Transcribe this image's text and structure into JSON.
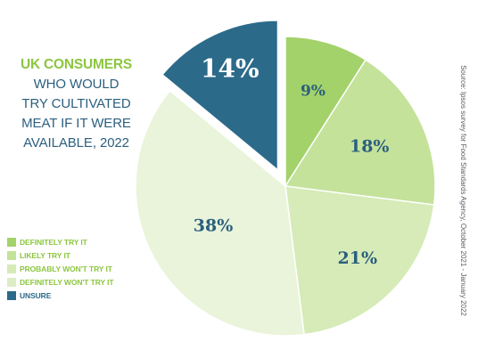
{
  "title": {
    "accent": "UK CONSUMERS",
    "lines": [
      "WHO WOULD",
      "TRY CULTIVATED",
      "MEAT IF IT WERE",
      "AVAILABLE, 2022"
    ]
  },
  "source": "Source: Ipsos survey for Food Standards Agency, October 2021 - January 2022",
  "colors": {
    "accent_green": "#8cc63f",
    "title_blue": "#2b5f7f",
    "label_blue": "#2b5f7f",
    "label_light": "#ffffff"
  },
  "chart_data": {
    "type": "pie",
    "title": "UK CONSUMERS WHO WOULD TRY CULTIVATED MEAT IF IT WERE AVAILABLE, 2022",
    "unit": "%",
    "start": "12 o'clock, clockwise",
    "exploded_slice": "Unsure",
    "slices": [
      {
        "name": "Definitely try it",
        "legend": "DEFINITELY TRY IT",
        "value": 9,
        "label": "9%",
        "color": "#a3d26a"
      },
      {
        "name": "Likely try it",
        "legend": "LIKELY TRY IT",
        "value": 18,
        "label": "18%",
        "color": "#c4e29a"
      },
      {
        "name": "Probably won't try it",
        "legend": "PROBABLY WON'T TRY IT",
        "value": 21,
        "label": "21%",
        "color": "#d6ebb7"
      },
      {
        "name": "Definitely won't try it",
        "legend": "DEFINITELY WON'T TRY IT",
        "value": 38,
        "label": "38%",
        "color": "#e9f4da"
      },
      {
        "name": "Unsure",
        "legend": "UNSURE",
        "value": 14,
        "label": "14%",
        "color": "#2c6a8a"
      }
    ],
    "legend_position": "left"
  }
}
